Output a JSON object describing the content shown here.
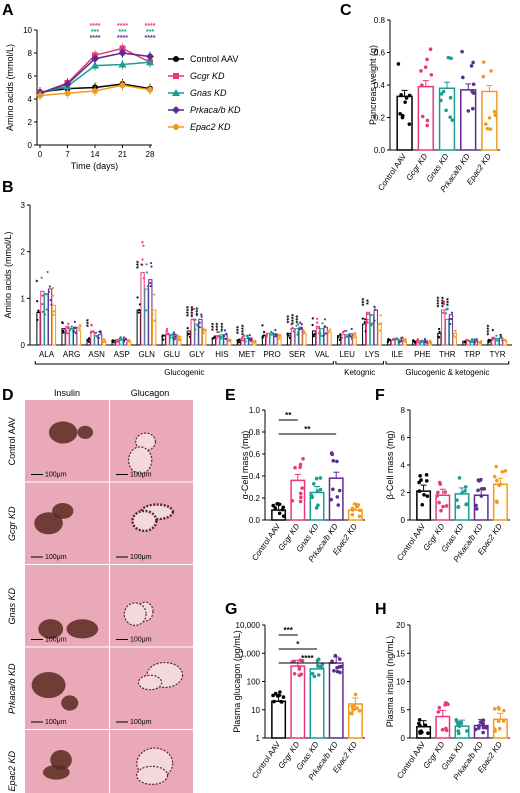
{
  "colors": {
    "Control AAV": "#000000",
    "Gcgr KD": "#e8387e",
    "Gnas KD": "#1a9e93",
    "Prkaca/b KD": "#5b2d8f",
    "Epac2 KD": "#f29a1f",
    "tissue": "#e9a9b9",
    "islet": "#5a2a1e"
  },
  "panel_labels": [
    "A",
    "B",
    "C",
    "D",
    "E",
    "F",
    "G",
    "H"
  ],
  "chart_data": [
    {
      "id": "A",
      "type": "line",
      "xlabel": "Time (days)",
      "ylabel": "Amino acids (mmol/L)",
      "x": [
        0,
        7,
        14,
        21,
        28
      ],
      "xticks": [
        "0",
        "7",
        "14",
        "21",
        "28"
      ],
      "yticks": [
        "0",
        "2",
        "4",
        "6",
        "8",
        "10"
      ],
      "ylim": [
        0,
        10
      ],
      "series": [
        {
          "name": "Control AAV",
          "values": [
            4.6,
            4.9,
            5.0,
            5.3,
            4.9
          ]
        },
        {
          "name": "Gcgr KD",
          "values": [
            4.5,
            5.4,
            7.8,
            8.4,
            7.2
          ]
        },
        {
          "name": "Gnas KD",
          "values": [
            4.5,
            5.1,
            6.9,
            7.0,
            7.2
          ]
        },
        {
          "name": "Prkaca/b KD",
          "values": [
            4.5,
            5.3,
            7.5,
            8.0,
            7.7
          ]
        },
        {
          "name": "Epac2 KD",
          "values": [
            4.3,
            4.5,
            4.7,
            5.2,
            4.8
          ]
        }
      ],
      "significance": [
        {
          "x": 14,
          "marks": [
            "****",
            "***",
            "****"
          ]
        },
        {
          "x": 21,
          "marks": [
            "****",
            "***",
            "****"
          ]
        },
        {
          "x": 28,
          "marks": [
            "****",
            "***",
            "****"
          ]
        }
      ]
    },
    {
      "id": "B",
      "type": "bar",
      "ylabel": "Amino acids (mmol/L)",
      "ylim": [
        0,
        3
      ],
      "yticks": [
        "0",
        "1",
        "2",
        "3"
      ],
      "categories": [
        "ALA",
        "ARG",
        "ASN",
        "ASP",
        "GLN",
        "GLU",
        "GLY",
        "HIS",
        "MET",
        "PRO",
        "SER",
        "VAL",
        "LEU",
        "LYS",
        "ILE",
        "PHE",
        "THR",
        "TRP",
        "TYR"
      ],
      "series": [
        {
          "name": "Control AAV",
          "values": [
            0.7,
            0.35,
            0.12,
            0.1,
            0.75,
            0.2,
            0.3,
            0.15,
            0.1,
            0.2,
            0.25,
            0.3,
            0.2,
            0.45,
            0.1,
            0.08,
            0.25,
            0.08,
            0.1
          ]
        },
        {
          "name": "Gcgr KD",
          "values": [
            1.15,
            0.4,
            0.3,
            0.12,
            1.55,
            0.25,
            0.55,
            0.2,
            0.15,
            0.25,
            0.35,
            0.4,
            0.22,
            0.7,
            0.1,
            0.09,
            0.75,
            0.09,
            0.15
          ]
        },
        {
          "name": "Gnas KD",
          "values": [
            1.1,
            0.35,
            0.2,
            0.12,
            1.2,
            0.22,
            0.45,
            0.22,
            0.14,
            0.22,
            0.35,
            0.35,
            0.22,
            0.65,
            0.11,
            0.09,
            0.55,
            0.09,
            0.14
          ]
        },
        {
          "name": "Prkaca/b KD",
          "values": [
            1.2,
            0.38,
            0.22,
            0.12,
            1.4,
            0.22,
            0.55,
            0.22,
            0.15,
            0.24,
            0.38,
            0.38,
            0.24,
            0.75,
            0.11,
            0.09,
            0.65,
            0.09,
            0.15
          ]
        },
        {
          "name": "Epac2 KD",
          "values": [
            0.85,
            0.3,
            0.1,
            0.08,
            0.75,
            0.18,
            0.3,
            0.12,
            0.08,
            0.18,
            0.25,
            0.28,
            0.2,
            0.45,
            0.1,
            0.07,
            0.25,
            0.07,
            0.09
          ]
        }
      ],
      "groups": [
        {
          "label": "Glucogenic",
          "from": 0,
          "to": 11
        },
        {
          "label": "Ketognic",
          "from": 12,
          "to": 13
        },
        {
          "label": "Glucogenic & ketogenic",
          "from": 14,
          "to": 18
        }
      ],
      "significance": [
        {
          "category": "ALA",
          "marks": [
            "*"
          ]
        },
        {
          "category": "ASN",
          "marks": [
            "***"
          ]
        },
        {
          "category": "GLN",
          "marks": [
            "***",
            "*"
          ]
        },
        {
          "category": "GLY",
          "marks": [
            "****",
            "****",
            "***"
          ]
        },
        {
          "category": "HIS",
          "marks": [
            "***",
            "***",
            "***"
          ]
        },
        {
          "category": "MET",
          "marks": [
            "***",
            "****"
          ]
        },
        {
          "category": "PRO",
          "marks": [
            "*"
          ]
        },
        {
          "category": "SER",
          "marks": [
            "***",
            "****",
            "***"
          ]
        },
        {
          "category": "VAL",
          "marks": [
            "*"
          ]
        },
        {
          "category": "LYS",
          "marks": [
            "***",
            "**"
          ]
        },
        {
          "category": "THR",
          "marks": [
            "****",
            "****",
            "***"
          ]
        },
        {
          "category": "TYR",
          "marks": [
            "****",
            "*"
          ]
        }
      ]
    },
    {
      "id": "C",
      "type": "bar",
      "ylabel": "Pancreas weight (g)",
      "ylim": [
        0,
        0.8
      ],
      "yticks": [
        "0.0",
        "0.2",
        "0.4",
        "0.6",
        "0.8"
      ],
      "categories": [
        "Control AAV",
        "Gcgr KD",
        "Gnas KD",
        "Prkaca/b KD",
        "Epac2 KD"
      ],
      "values": [
        0.33,
        0.39,
        0.38,
        0.37,
        0.36
      ]
    },
    {
      "id": "E",
      "type": "bar",
      "ylabel": "α-Cell mass (mg)",
      "ylim": [
        0,
        1
      ],
      "yticks": [
        "0.0",
        "0.2",
        "0.4",
        "0.6",
        "0.8",
        "1.0"
      ],
      "categories": [
        "Control AAV",
        "Gcgr KD",
        "Gnas KD",
        "Prkaca/b KD",
        "Epac2 KD"
      ],
      "values": [
        0.09,
        0.36,
        0.25,
        0.38,
        0.09
      ],
      "significance": [
        {
          "from": 0,
          "to": 1,
          "mark": "**"
        },
        {
          "from": 0,
          "to": 3,
          "mark": "**"
        }
      ]
    },
    {
      "id": "F",
      "type": "bar",
      "ylabel": "β-Cell mass (mg)",
      "ylim": [
        0,
        8
      ],
      "yticks": [
        "0",
        "2",
        "4",
        "6",
        "8"
      ],
      "categories": [
        "Control AAV",
        "Gcgr KD",
        "Gnas KD",
        "Prkaca/b KD",
        "Epac2 KD"
      ],
      "values": [
        2.1,
        1.8,
        1.9,
        1.8,
        2.6
      ]
    },
    {
      "id": "G",
      "type": "bar",
      "scale": "log",
      "ylabel": "Plasma glucagon (pg/mL)",
      "ylim": [
        1,
        10000
      ],
      "yticks": [
        "1",
        "10",
        "100",
        "1,000",
        "10,000"
      ],
      "categories": [
        "Control AAV",
        "Gcgr KD",
        "Gnas KD",
        "Prkaca/b KD",
        "Epac2 KD"
      ],
      "values": [
        20,
        350,
        280,
        450,
        16
      ],
      "significance": [
        {
          "from": 0,
          "to": 1,
          "mark": "***"
        },
        {
          "from": 0,
          "to": 2,
          "mark": "*"
        },
        {
          "from": 0,
          "to": 3,
          "mark": "****"
        }
      ]
    },
    {
      "id": "H",
      "type": "bar",
      "ylabel": "Plasma insulin (ng/mL)",
      "ylim": [
        0,
        20
      ],
      "yticks": [
        "0",
        "5",
        "10",
        "15",
        "20"
      ],
      "categories": [
        "Control AAV",
        "Gcgr KD",
        "Gnas KD",
        "Prkaca/b KD",
        "Epac2 KD"
      ],
      "values": [
        2.0,
        3.8,
        2.1,
        2.2,
        3.3
      ]
    }
  ],
  "legend": {
    "entries": [
      {
        "name": "Control AAV",
        "marker": "circle"
      },
      {
        "name": "Gcgr KD",
        "marker": "square"
      },
      {
        "name": "Gnas KD",
        "marker": "triangle"
      },
      {
        "name": "Prkaca/b KD",
        "marker": "diamond"
      },
      {
        "name": "Epac2 KD",
        "marker": "circle"
      }
    ]
  },
  "histology": {
    "col_headers": [
      "Insulin",
      "Glucagon"
    ],
    "row_labels": [
      "Control AAV",
      "Gcgr KD",
      "Gnas KD",
      "Prkaca/b KD",
      "Epac2 KD"
    ],
    "scale_bar": "100μm"
  }
}
